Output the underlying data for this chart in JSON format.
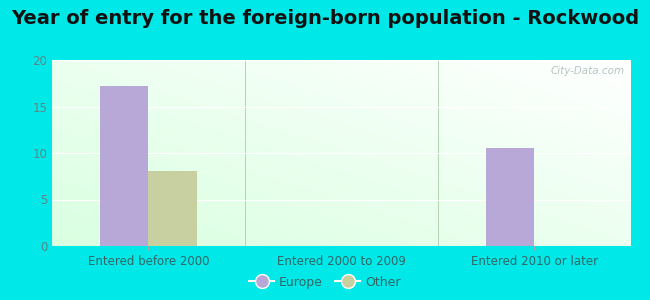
{
  "title": "Year of entry for the foreign-born population - Rockwood",
  "categories": [
    "Entered before 2000",
    "Entered 2000 to 2009",
    "Entered 2010 or later"
  ],
  "europe_values": [
    17.2,
    0,
    10.5
  ],
  "other_values": [
    8.1,
    0,
    0
  ],
  "europe_color": "#b8a8d8",
  "other_color": "#c8cfa0",
  "ylim": [
    0,
    20
  ],
  "yticks": [
    0,
    5,
    10,
    15,
    20
  ],
  "bar_width": 0.25,
  "background_color": "#00e8e8",
  "title_fontsize": 14,
  "tick_fontsize": 8.5,
  "legend_europe": "Europe",
  "legend_other": "Other",
  "watermark": "City-Data.com"
}
